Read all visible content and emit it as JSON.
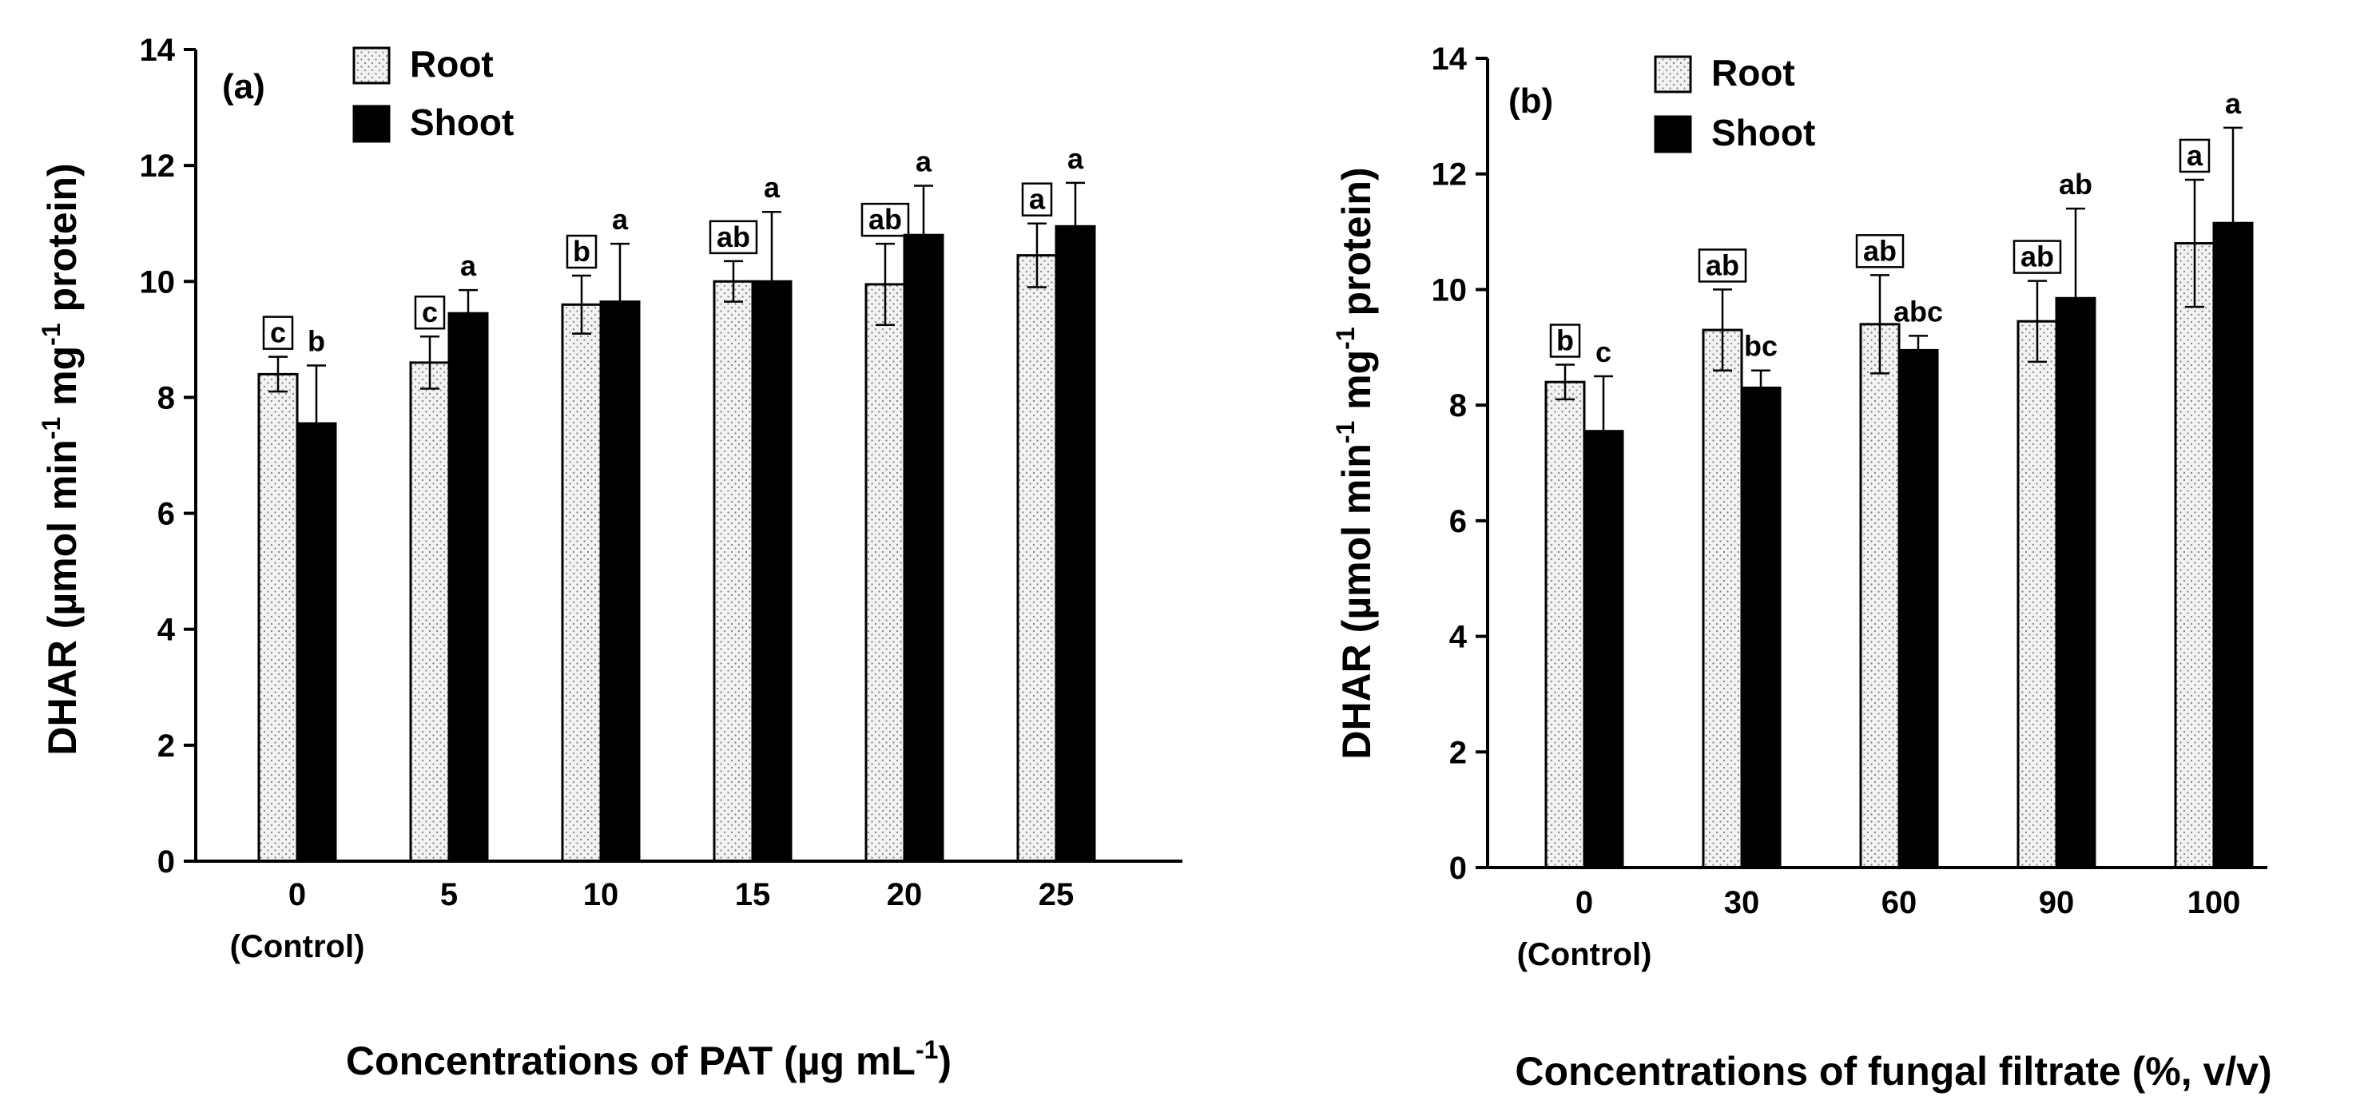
{
  "chart_data": [
    {
      "type": "bar",
      "panel_label": "(a)",
      "categories": [
        "0",
        "5",
        "10",
        "15",
        "20",
        "25"
      ],
      "category_sublabels": [
        "(Control)",
        "",
        "",
        "",
        "",
        ""
      ],
      "series": [
        {
          "name": "Root",
          "values": [
            8.4,
            8.6,
            9.6,
            10.0,
            9.95,
            10.45
          ],
          "errors": [
            0.3,
            0.45,
            0.5,
            0.35,
            0.7,
            0.55
          ],
          "letters": [
            "c",
            "c",
            "b",
            "ab",
            "ab",
            "a"
          ],
          "boxed_letters": true
        },
        {
          "name": "Shoot",
          "values": [
            7.55,
            9.45,
            9.65,
            10.0,
            10.8,
            10.95
          ],
          "errors": [
            1.0,
            0.4,
            1.0,
            1.2,
            0.85,
            0.75
          ],
          "letters": [
            "b",
            "a",
            "a",
            "a",
            "a",
            "a"
          ],
          "boxed_letters": false
        }
      ],
      "ylabel": "DHAR (µmol min-1 mg-1 protein)",
      "ylabel_parts": {
        "pre": "DHAR (µmol min",
        "sup1": "-1",
        "mid": " mg",
        "sup2": "-1",
        "post": " protein)"
      },
      "xlabel": "Concentrations of PAT (µg mL-1)",
      "xlabel_parts": {
        "pre": "Concentrations of PAT (µg mL",
        "sup": "-1",
        "post": ")"
      },
      "ylim": [
        0,
        14
      ],
      "yticks": [
        0,
        2,
        4,
        6,
        8,
        10,
        12,
        14
      ],
      "legend_position": "top-left"
    },
    {
      "type": "bar",
      "panel_label": "(b)",
      "categories": [
        "0",
        "30",
        "60",
        "90",
        "100"
      ],
      "category_sublabels": [
        "(Control)",
        "",
        "",
        "",
        ""
      ],
      "series": [
        {
          "name": "Root",
          "values": [
            8.4,
            9.3,
            9.4,
            9.45,
            10.8
          ],
          "errors": [
            0.3,
            0.7,
            0.85,
            0.7,
            1.1
          ],
          "letters": [
            "b",
            "ab",
            "ab",
            "ab",
            "a"
          ],
          "boxed_letters": true
        },
        {
          "name": "Shoot",
          "values": [
            7.55,
            8.3,
            8.95,
            9.85,
            11.15
          ],
          "errors": [
            0.95,
            0.3,
            0.25,
            1.55,
            1.65
          ],
          "letters": [
            "c",
            "bc",
            "abc",
            "ab",
            "a"
          ],
          "boxed_letters": false
        }
      ],
      "ylabel": "DHAR (µmol min-1 mg-1 protein)",
      "ylabel_parts": {
        "pre": "DHAR (µmol min",
        "sup1": "-1",
        "mid": " mg",
        "sup2": "-1",
        "post": " protein)"
      },
      "xlabel": "Concentrations of fungal filtrate (%, v/v)",
      "xlabel_parts": {
        "pre": "Concentrations of fungal filtrate (%, v/v)",
        "sup": "",
        "post": ""
      },
      "ylim": [
        0,
        14
      ],
      "yticks": [
        0,
        2,
        4,
        6,
        8,
        10,
        12,
        14
      ],
      "legend_position": "top-left"
    }
  ],
  "colors": {
    "root_fill": "#f2f2f2",
    "root_dots": "#808080",
    "shoot_fill": "#000000",
    "axis": "#000000"
  }
}
